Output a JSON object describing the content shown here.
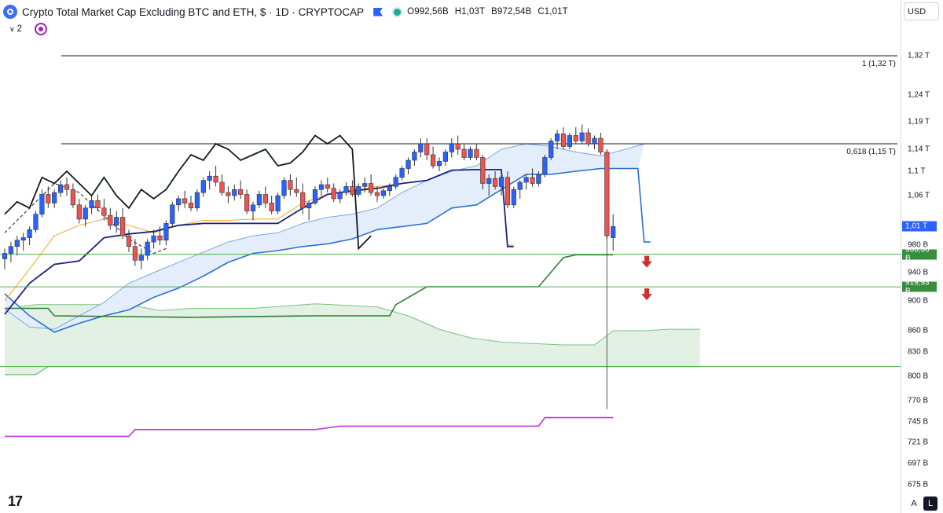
{
  "header": {
    "title": "Crypto Total Market Cap Excluding BTC and ETH, $ · 1D · CRYPTOCAP",
    "open": "O992,56B",
    "high": "H1,03T",
    "low": "B972,54B",
    "close": "C1,01T",
    "indicator_count": "2"
  },
  "currency": "USD",
  "buttons": {
    "auto": "A",
    "log": "L"
  },
  "colors": {
    "up": "#2962ff",
    "down": "#ef5350",
    "bg": "#ffffff",
    "price_label": "#2962ff",
    "support_label": "#388e3c",
    "arrow": "#d32f2f",
    "magenta": "#c237e0",
    "fib_line": "#131722"
  },
  "chart_data": {
    "type": "candlestick",
    "title": "Crypto Total Market Cap Excluding BTC and ETH",
    "y_unit": "B",
    "y_ticks": [
      {
        "v": 1320,
        "label": "1,32 T"
      },
      {
        "v": 1240,
        "label": "1,24 T"
      },
      {
        "v": 1190,
        "label": "1,19 T"
      },
      {
        "v": 1140,
        "label": "1,14 T"
      },
      {
        "v": 1100,
        "label": "1,1 T"
      },
      {
        "v": 1060,
        "label": "1,06 T"
      },
      {
        "v": 980,
        "label": "980 B"
      },
      {
        "v": 940,
        "label": "940 B"
      },
      {
        "v": 900,
        "label": "900 B"
      },
      {
        "v": 860,
        "label": "860 B"
      },
      {
        "v": 830,
        "label": "830 B"
      },
      {
        "v": 800,
        "label": "800 B"
      },
      {
        "v": 770,
        "label": "770 B"
      },
      {
        "v": 745,
        "label": "745 B"
      },
      {
        "v": 721,
        "label": "721 B"
      },
      {
        "v": 697,
        "label": "697 B"
      },
      {
        "v": 675,
        "label": "675 B"
      }
    ],
    "price_labels": [
      {
        "v": 1010,
        "label": "1,01 T",
        "kind": "last"
      },
      {
        "v": 966.66,
        "label": "966,66 B",
        "kind": "support"
      },
      {
        "v": 919.93,
        "label": "919,93 B",
        "kind": "support"
      }
    ],
    "fib_levels": [
      {
        "v": 1320,
        "label": "1 (1,32 T)"
      },
      {
        "v": 1150,
        "label": "0,618 (1,15 T)"
      }
    ],
    "support_levels": [
      966.66,
      919.93,
      812
    ],
    "candles": [
      [
        960,
        975,
        945,
        968
      ],
      [
        968,
        985,
        955,
        978
      ],
      [
        978,
        995,
        965,
        988
      ],
      [
        988,
        1000,
        972,
        992
      ],
      [
        992,
        1010,
        980,
        1005
      ],
      [
        1005,
        1035,
        1000,
        1030
      ],
      [
        1030,
        1070,
        1025,
        1062
      ],
      [
        1062,
        1075,
        1040,
        1048
      ],
      [
        1048,
        1070,
        1040,
        1065
      ],
      [
        1065,
        1085,
        1058,
        1078
      ],
      [
        1078,
        1090,
        1060,
        1070
      ],
      [
        1070,
        1080,
        1040,
        1045
      ],
      [
        1045,
        1055,
        1015,
        1022
      ],
      [
        1022,
        1045,
        1010,
        1040
      ],
      [
        1040,
        1060,
        1030,
        1052
      ],
      [
        1052,
        1062,
        1035,
        1040
      ],
      [
        1040,
        1055,
        1020,
        1028
      ],
      [
        1028,
        1040,
        1005,
        1012
      ],
      [
        1012,
        1035,
        1000,
        1025
      ],
      [
        1025,
        1040,
        990,
        995
      ],
      [
        995,
        1005,
        970,
        978
      ],
      [
        978,
        990,
        950,
        958
      ],
      [
        958,
        975,
        945,
        965
      ],
      [
        965,
        990,
        958,
        985
      ],
      [
        985,
        1005,
        975,
        995
      ],
      [
        995,
        1010,
        980,
        988
      ],
      [
        988,
        1020,
        980,
        1015
      ],
      [
        1015,
        1050,
        1008,
        1045
      ],
      [
        1045,
        1060,
        1035,
        1055
      ],
      [
        1055,
        1068,
        1040,
        1048
      ],
      [
        1048,
        1060,
        1035,
        1040
      ],
      [
        1040,
        1070,
        1035,
        1065
      ],
      [
        1065,
        1090,
        1058,
        1085
      ],
      [
        1085,
        1100,
        1070,
        1092
      ],
      [
        1092,
        1110,
        1075,
        1082
      ],
      [
        1082,
        1095,
        1060,
        1065
      ],
      [
        1065,
        1075,
        1048,
        1060
      ],
      [
        1060,
        1078,
        1052,
        1070
      ],
      [
        1070,
        1085,
        1055,
        1062
      ],
      [
        1062,
        1070,
        1030,
        1035
      ],
      [
        1035,
        1050,
        1020,
        1045
      ],
      [
        1045,
        1068,
        1040,
        1062
      ],
      [
        1062,
        1075,
        1040,
        1048
      ],
      [
        1048,
        1060,
        1030,
        1035
      ],
      [
        1035,
        1065,
        1030,
        1060
      ],
      [
        1060,
        1090,
        1055,
        1085
      ],
      [
        1085,
        1095,
        1060,
        1070
      ],
      [
        1070,
        1090,
        1058,
        1065
      ],
      [
        1065,
        1080,
        1030,
        1040
      ],
      [
        1040,
        1052,
        1020,
        1048
      ],
      [
        1048,
        1075,
        1045,
        1070
      ],
      [
        1070,
        1085,
        1060,
        1078
      ],
      [
        1078,
        1090,
        1065,
        1072
      ],
      [
        1072,
        1080,
        1050,
        1055
      ],
      [
        1055,
        1070,
        1048,
        1065
      ],
      [
        1065,
        1082,
        1060,
        1075
      ],
      [
        1075,
        1085,
        1058,
        1062
      ],
      [
        1062,
        1080,
        1058,
        1075
      ],
      [
        1075,
        1090,
        1065,
        1080
      ],
      [
        1080,
        1095,
        1060,
        1065
      ],
      [
        1065,
        1075,
        1050,
        1060
      ],
      [
        1060,
        1072,
        1055,
        1068
      ],
      [
        1068,
        1080,
        1060,
        1075
      ],
      [
        1075,
        1095,
        1070,
        1090
      ],
      [
        1090,
        1110,
        1085,
        1105
      ],
      [
        1105,
        1125,
        1095,
        1120
      ],
      [
        1120,
        1140,
        1110,
        1135
      ],
      [
        1135,
        1160,
        1125,
        1150
      ],
      [
        1150,
        1160,
        1120,
        1130
      ],
      [
        1130,
        1145,
        1105,
        1110
      ],
      [
        1110,
        1125,
        1100,
        1118
      ],
      [
        1118,
        1140,
        1110,
        1135
      ],
      [
        1135,
        1160,
        1125,
        1150
      ],
      [
        1150,
        1165,
        1130,
        1140
      ],
      [
        1140,
        1150,
        1120,
        1125
      ],
      [
        1125,
        1145,
        1120,
        1140
      ],
      [
        1140,
        1150,
        1120,
        1125
      ],
      [
        1125,
        1130,
        1070,
        1080
      ],
      [
        1080,
        1095,
        1060,
        1088
      ],
      [
        1088,
        1100,
        1070,
        1075
      ],
      [
        1075,
        1095,
        1060,
        1090
      ],
      [
        1090,
        1100,
        1040,
        1045
      ],
      [
        1045,
        1075,
        1040,
        1070
      ],
      [
        1070,
        1085,
        1055,
        1082
      ],
      [
        1082,
        1095,
        1070,
        1090
      ],
      [
        1090,
        1105,
        1075,
        1080
      ],
      [
        1080,
        1100,
        1075,
        1095
      ],
      [
        1095,
        1130,
        1090,
        1125
      ],
      [
        1125,
        1160,
        1120,
        1155
      ],
      [
        1155,
        1175,
        1140,
        1168
      ],
      [
        1168,
        1180,
        1140,
        1145
      ],
      [
        1145,
        1170,
        1140,
        1165
      ],
      [
        1165,
        1180,
        1150,
        1155
      ],
      [
        1155,
        1185,
        1150,
        1170
      ],
      [
        1170,
        1178,
        1145,
        1150
      ],
      [
        1150,
        1165,
        1140,
        1160
      ],
      [
        1160,
        1170,
        1130,
        1135
      ],
      [
        1135,
        1140,
        990,
        995
      ],
      [
        992,
        1030,
        972,
        1010
      ]
    ],
    "overlays": {
      "black_line": [
        [
          0,
          1030
        ],
        [
          2,
          1050
        ],
        [
          4,
          1040
        ],
        [
          6,
          1090
        ],
        [
          8,
          1080
        ],
        [
          10,
          1100
        ],
        [
          12,
          1080
        ],
        [
          14,
          1060
        ],
        [
          16,
          1090
        ],
        [
          18,
          1060
        ],
        [
          20,
          1040
        ],
        [
          22,
          1070
        ],
        [
          24,
          1055
        ],
        [
          26,
          1070
        ],
        [
          28,
          1100
        ],
        [
          30,
          1130
        ],
        [
          32,
          1120
        ],
        [
          34,
          1150
        ],
        [
          36,
          1140
        ],
        [
          38,
          1120
        ],
        [
          40,
          1130
        ],
        [
          42,
          1140
        ],
        [
          44,
          1110
        ],
        [
          46,
          1115
        ],
        [
          48,
          1135
        ],
        [
          50,
          1165
        ],
        [
          52,
          1150
        ],
        [
          54,
          1165
        ],
        [
          56,
          1140
        ],
        [
          57,
          975
        ],
        [
          59,
          995
        ]
      ],
      "dashed_line": [
        [
          0,
          1000
        ],
        [
          8,
          1080
        ],
        [
          12,
          1065
        ],
        [
          20,
          990
        ],
        [
          24,
          968
        ],
        [
          26,
          975
        ]
      ],
      "tenkan": [
        [
          0,
          900
        ],
        [
          4,
          945
        ],
        [
          8,
          995
        ],
        [
          12,
          1012
        ],
        [
          16,
          1022
        ],
        [
          20,
          1012
        ],
        [
          24,
          1000
        ],
        [
          28,
          1012
        ],
        [
          32,
          1020
        ],
        [
          36,
          1020
        ],
        [
          40,
          1022
        ],
        [
          44,
          1022
        ],
        [
          48,
          1048
        ],
        [
          52,
          1062
        ],
        [
          56,
          1068
        ],
        [
          60,
          1075
        ],
        [
          64,
          1080
        ],
        [
          68,
          1085
        ],
        [
          72,
          1102
        ],
        [
          76,
          1103
        ],
        [
          80,
          1103
        ],
        [
          81,
          980
        ],
        [
          82,
          980
        ]
      ],
      "kijun": [
        [
          0,
          882
        ],
        [
          4,
          925
        ],
        [
          8,
          952
        ],
        [
          12,
          957
        ],
        [
          16,
          992
        ],
        [
          20,
          998
        ],
        [
          24,
          1002
        ],
        [
          28,
          1012
        ],
        [
          32,
          1015
        ],
        [
          36,
          1015
        ],
        [
          40,
          1015
        ],
        [
          44,
          1015
        ],
        [
          48,
          1040
        ],
        [
          52,
          1062
        ],
        [
          56,
          1068
        ],
        [
          60,
          1072
        ],
        [
          64,
          1080
        ],
        [
          68,
          1085
        ],
        [
          72,
          1102
        ],
        [
          76,
          1103
        ],
        [
          80,
          1103
        ],
        [
          81,
          978
        ],
        [
          82,
          978
        ]
      ],
      "span_a": [
        [
          0,
          889
        ],
        [
          4,
          865
        ],
        [
          8,
          862
        ],
        [
          12,
          880
        ],
        [
          16,
          898
        ],
        [
          20,
          925
        ],
        [
          24,
          940
        ],
        [
          28,
          955
        ],
        [
          32,
          970
        ],
        [
          36,
          985
        ],
        [
          40,
          995
        ],
        [
          44,
          1000
        ],
        [
          48,
          1015
        ],
        [
          52,
          1025
        ],
        [
          56,
          1030
        ],
        [
          60,
          1040
        ],
        [
          64,
          1065
        ],
        [
          68,
          1085
        ],
        [
          72,
          1100
        ],
        [
          76,
          1110
        ],
        [
          80,
          1140
        ],
        [
          84,
          1150
        ],
        [
          88,
          1145
        ],
        [
          92,
          1135
        ],
        [
          96,
          1128
        ],
        [
          100,
          1140
        ],
        [
          103,
          1150
        ]
      ],
      "span_b": [
        [
          0,
          910
        ],
        [
          4,
          880
        ],
        [
          8,
          858
        ],
        [
          12,
          870
        ],
        [
          16,
          880
        ],
        [
          20,
          888
        ],
        [
          24,
          905
        ],
        [
          28,
          918
        ],
        [
          32,
          935
        ],
        [
          36,
          955
        ],
        [
          40,
          968
        ],
        [
          44,
          972
        ],
        [
          48,
          978
        ],
        [
          52,
          982
        ],
        [
          56,
          990
        ],
        [
          60,
          1005
        ],
        [
          64,
          1010
        ],
        [
          68,
          1015
        ],
        [
          72,
          1040
        ],
        [
          76,
          1045
        ],
        [
          80,
          1070
        ],
        [
          84,
          1095
        ],
        [
          88,
          1095
        ],
        [
          92,
          1100
        ],
        [
          96,
          1105
        ],
        [
          100,
          1105
        ],
        [
          102,
          1105
        ],
        [
          103,
          985
        ],
        [
          104,
          985
        ]
      ],
      "green_span_top": [
        [
          0,
          890
        ],
        [
          5,
          895
        ],
        [
          10,
          895
        ],
        [
          20,
          895
        ],
        [
          25,
          887
        ],
        [
          30,
          890
        ],
        [
          40,
          890
        ],
        [
          50,
          896
        ],
        [
          60,
          892
        ],
        [
          65,
          880
        ],
        [
          70,
          862
        ],
        [
          75,
          850
        ],
        [
          80,
          844
        ],
        [
          85,
          842
        ],
        [
          90,
          840
        ],
        [
          95,
          840
        ],
        [
          98,
          860
        ],
        [
          103,
          860
        ],
        [
          107,
          862
        ],
        [
          112,
          862
        ]
      ],
      "green_span_bottom": [
        [
          0,
          802
        ],
        [
          5,
          802
        ],
        [
          7,
          812
        ],
        [
          112,
          812
        ]
      ],
      "dark_green_step": [
        [
          0,
          890
        ],
        [
          7,
          890
        ],
        [
          8,
          880
        ],
        [
          30,
          878
        ],
        [
          50,
          880
        ],
        [
          62,
          880
        ],
        [
          63,
          895
        ],
        [
          68,
          920
        ],
        [
          86,
          920
        ],
        [
          90,
          962
        ],
        [
          92,
          966
        ],
        [
          98,
          966
        ]
      ],
      "magenta_line": [
        [
          0,
          728
        ],
        [
          20,
          728
        ],
        [
          21,
          736
        ],
        [
          40,
          736
        ],
        [
          50,
          736
        ],
        [
          54,
          740
        ],
        [
          80,
          740
        ],
        [
          86,
          740
        ],
        [
          87,
          750
        ],
        [
          98,
          750
        ]
      ]
    },
    "annotations": [
      "down arrow at 966,66 B",
      "down arrow at 919,93 B"
    ]
  }
}
